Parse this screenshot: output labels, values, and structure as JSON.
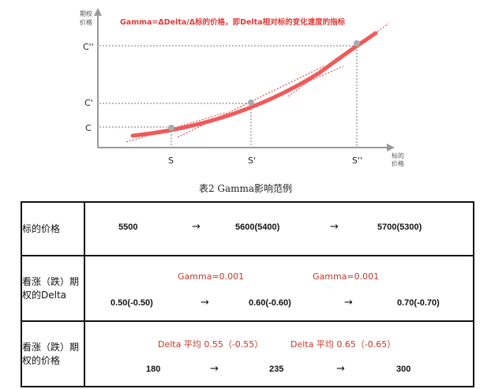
{
  "diagram": {
    "y_axis_label_line1": "期权",
    "y_axis_label_line2": "价格",
    "x_axis_label_line1": "标的",
    "x_axis_label_line2": "价格",
    "title": "Gamma=ΔDelta/Δ标的价格，即Delta相对标的变化速度的指标",
    "y_ticks": [
      "C''",
      "C'",
      "C"
    ],
    "x_ticks": [
      "S",
      "S'",
      "S''"
    ],
    "curve_color": "#f05a5a",
    "tangent_color": "#d63c3c"
  },
  "caption": "表2 Gamma影响范例",
  "table": {
    "rows": [
      {
        "label": "标的价格",
        "values": [
          "5500",
          "5600(5400)",
          "5700(5300)"
        ],
        "arrows": [
          "→",
          "→"
        ],
        "notes": []
      },
      {
        "label": "看涨（跌）期权的Delta",
        "values": [
          "0.50(-0.50)",
          "0.60(-0.60)",
          "0.70(-0.70)"
        ],
        "arrows": [
          "→",
          "→"
        ],
        "notes": [
          "Gamma=0.001",
          "Gamma=0.001"
        ]
      },
      {
        "label": "看涨（跌）期权的价格",
        "values": [
          "180",
          "235",
          "300"
        ],
        "arrows": [
          "→",
          "→"
        ],
        "notes": [
          "Delta 平均 0.55（-0.55）",
          "Delta 平均 0.65（-0.65）"
        ]
      }
    ]
  }
}
